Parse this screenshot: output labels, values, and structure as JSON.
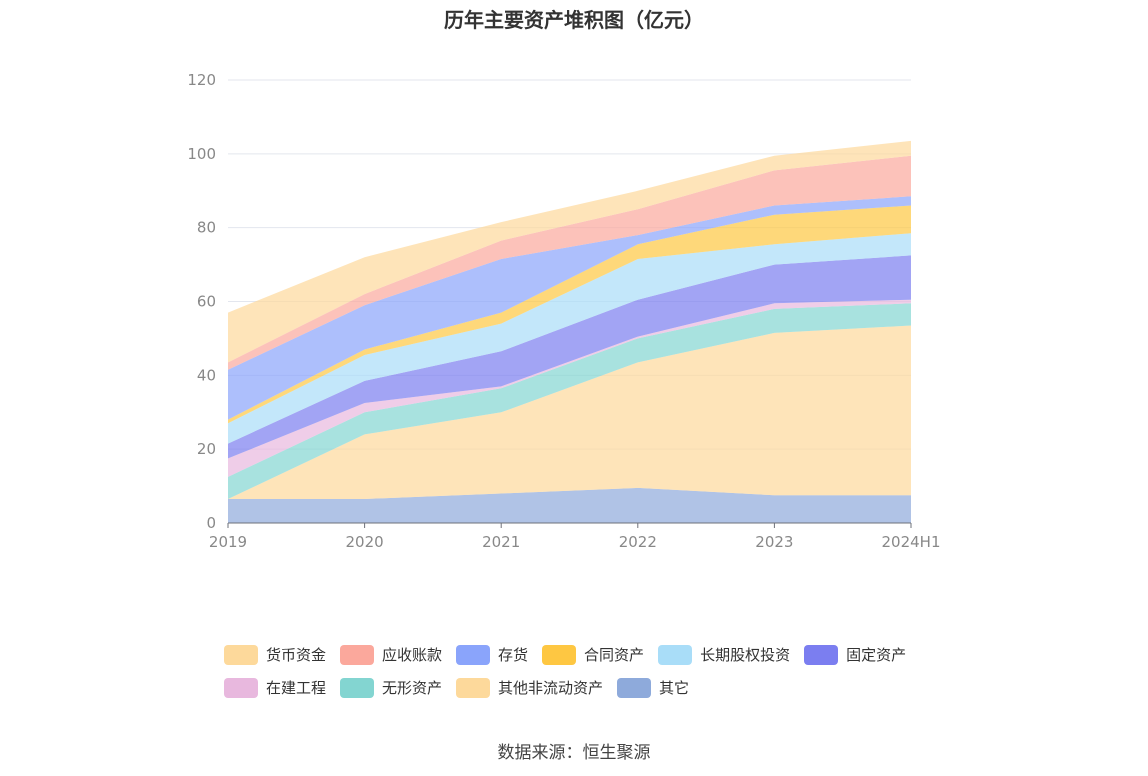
{
  "chart_data": {
    "type": "area",
    "stacked": true,
    "title": "历年主要资产堆积图（亿元）",
    "categories": [
      "2019",
      "2020",
      "2021",
      "2022",
      "2023",
      "2024H1"
    ],
    "ylim": [
      0,
      120
    ],
    "yticks": [
      0,
      20,
      40,
      60,
      80,
      100,
      120
    ],
    "grid": true,
    "legend_position": "bottom",
    "series": [
      {
        "name": "其它",
        "color": "#8eaadb",
        "values": [
          6.5,
          6.5,
          8,
          9.5,
          7.5,
          7.5
        ]
      },
      {
        "name": "其他非流动资产",
        "color": "#fdd99b",
        "values": [
          0,
          17.5,
          22,
          34,
          44,
          46
        ]
      },
      {
        "name": "无形资产",
        "color": "#83d5d1",
        "values": [
          6,
          6,
          6.5,
          6.5,
          6.5,
          6
        ]
      },
      {
        "name": "在建工程",
        "color": "#e8b8de",
        "values": [
          5,
          2.5,
          0.5,
          0.5,
          1.5,
          1
        ]
      },
      {
        "name": "固定资产",
        "color": "#7b7ef0",
        "values": [
          4,
          6,
          9.5,
          10,
          10.5,
          12
        ]
      },
      {
        "name": "长期股权投资",
        "color": "#a9ddf8",
        "values": [
          5.5,
          7,
          7.5,
          11,
          5.5,
          6
        ]
      },
      {
        "name": "合同资产",
        "color": "#fec742",
        "values": [
          1,
          1.5,
          3,
          4,
          8,
          7.5
        ]
      },
      {
        "name": "存货",
        "color": "#8aa4fb",
        "values": [
          13.5,
          12,
          14.5,
          2.5,
          2.5,
          2.5
        ]
      },
      {
        "name": "应收账款",
        "color": "#fba89c",
        "values": [
          2,
          3,
          5,
          7,
          9.5,
          11
        ]
      },
      {
        "name": "货币资金",
        "color": "#fdd99b",
        "values": [
          13.5,
          10,
          5,
          5,
          4,
          4
        ]
      }
    ]
  },
  "legend": {
    "row1": [
      "货币资金",
      "应收账款",
      "存货",
      "合同资产",
      "长期股权投资",
      "固定资产"
    ],
    "row2": [
      "在建工程",
      "无形资产",
      "其他非流动资产",
      "其它"
    ]
  },
  "source": "数据来源：恒生聚源"
}
